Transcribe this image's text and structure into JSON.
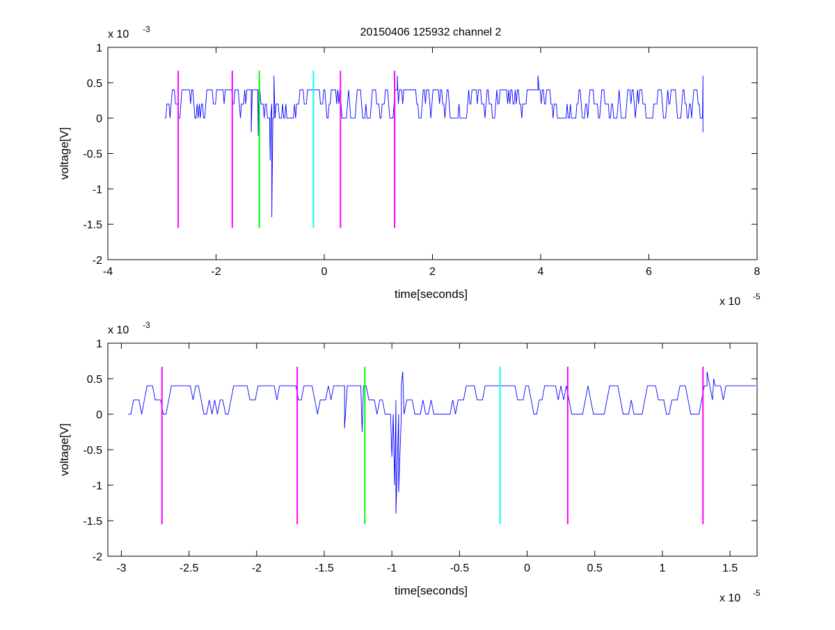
{
  "figure": {
    "title": "20150406 125932 channel 2"
  },
  "colors": {
    "trace": "#0000ff",
    "magenta": "#ff00ff",
    "green": "#00ff00",
    "cyan": "#00ffff"
  },
  "chart_data": [
    {
      "type": "line",
      "xlabel": "time[seconds]",
      "ylabel": "voltage[V]",
      "x_exponent_label": "x 10",
      "x_exponent": "-5",
      "y_exponent_label": "x 10",
      "y_exponent": "-3",
      "xlim": [
        -4,
        8
      ],
      "ylim": [
        -2,
        1
      ],
      "xticks": [
        -4,
        -2,
        0,
        2,
        4,
        6,
        8
      ],
      "xtick_labels": [
        "-4",
        "-2",
        "0",
        "2",
        "4",
        "6",
        "8"
      ],
      "yticks": [
        1,
        0.5,
        0,
        -0.5,
        -1,
        -1.5,
        -2
      ],
      "ytick_labels": [
        "1",
        "0.5",
        "0",
        "-0.5",
        "-1",
        "-1.5",
        "-2"
      ],
      "grid": false,
      "trace_range": [
        -2.95,
        7.0
      ],
      "trace_levels": [
        0,
        0.2,
        0.4
      ],
      "trace_events": [
        {
          "x": -1.35,
          "y": -0.2
        },
        {
          "x": -1.22,
          "y": -0.25
        },
        {
          "x": -1.0,
          "y": -0.6
        },
        {
          "x": -0.97,
          "y": -1.4
        },
        {
          "x": -0.93,
          "y": 0.6
        },
        {
          "x": 1.35,
          "y": 0.6
        },
        {
          "x": 3.95,
          "y": 0.6
        },
        {
          "x": 7.0,
          "y": 0.6
        },
        {
          "x": 7.0,
          "y": -0.2
        }
      ],
      "markers": [
        {
          "x": -2.7,
          "color": "magenta",
          "y_range": [
            -1.55,
            0.67
          ]
        },
        {
          "x": -1.7,
          "color": "magenta",
          "y_range": [
            -1.55,
            0.67
          ]
        },
        {
          "x": -1.2,
          "color": "green",
          "y_range": [
            -1.55,
            0.67
          ]
        },
        {
          "x": -0.2,
          "color": "cyan",
          "y_range": [
            -1.55,
            0.67
          ]
        },
        {
          "x": 0.3,
          "color": "magenta",
          "y_range": [
            -1.55,
            0.67
          ]
        },
        {
          "x": 1.3,
          "color": "magenta",
          "y_range": [
            -1.55,
            0.67
          ]
        }
      ]
    },
    {
      "type": "line",
      "xlabel": "time[seconds]",
      "ylabel": "voltage[V]",
      "x_exponent_label": "x 10",
      "x_exponent": "-5",
      "y_exponent_label": "x 10",
      "y_exponent": "-3",
      "xlim": [
        -3.1,
        1.7
      ],
      "ylim": [
        -2,
        1
      ],
      "xticks": [
        -3,
        -2.5,
        -2,
        -1.5,
        -1,
        -0.5,
        0,
        0.5,
        1,
        1.5
      ],
      "xtick_labels": [
        "-3",
        "-2.5",
        "-2",
        "-1.5",
        "-1",
        "-0.5",
        "0",
        "0.5",
        "1",
        "1.5"
      ],
      "yticks": [
        1,
        0.5,
        0,
        -0.5,
        -1,
        -1.5,
        -2
      ],
      "ytick_labels": [
        "1",
        "0.5",
        "0",
        "-0.5",
        "-1",
        "-1.5",
        "-2"
      ],
      "grid": false,
      "trace_range": [
        -2.95,
        1.7
      ],
      "trace_levels": [
        0,
        0.2,
        0.4
      ],
      "trace_events": [
        {
          "x": -1.35,
          "y": -0.2
        },
        {
          "x": -1.22,
          "y": -0.25
        },
        {
          "x": -1.0,
          "y": -0.6
        },
        {
          "x": -0.98,
          "y": -1.0
        },
        {
          "x": -0.97,
          "y": -1.4
        },
        {
          "x": -0.95,
          "y": -1.1
        },
        {
          "x": -0.93,
          "y": 0.4
        },
        {
          "x": -0.92,
          "y": 0.6
        },
        {
          "x": 1.33,
          "y": 0.6
        },
        {
          "x": 1.38,
          "y": 0.5
        }
      ],
      "markers": [
        {
          "x": -2.7,
          "color": "magenta",
          "y_range": [
            -1.55,
            0.67
          ]
        },
        {
          "x": -1.7,
          "color": "magenta",
          "y_range": [
            -1.55,
            0.67
          ]
        },
        {
          "x": -1.2,
          "color": "green",
          "y_range": [
            -1.55,
            0.67
          ]
        },
        {
          "x": -0.2,
          "color": "cyan",
          "y_range": [
            -1.55,
            0.67
          ]
        },
        {
          "x": 0.3,
          "color": "magenta",
          "y_range": [
            -1.55,
            0.67
          ]
        },
        {
          "x": 1.3,
          "color": "magenta",
          "y_range": [
            -1.55,
            0.67
          ]
        }
      ]
    }
  ]
}
